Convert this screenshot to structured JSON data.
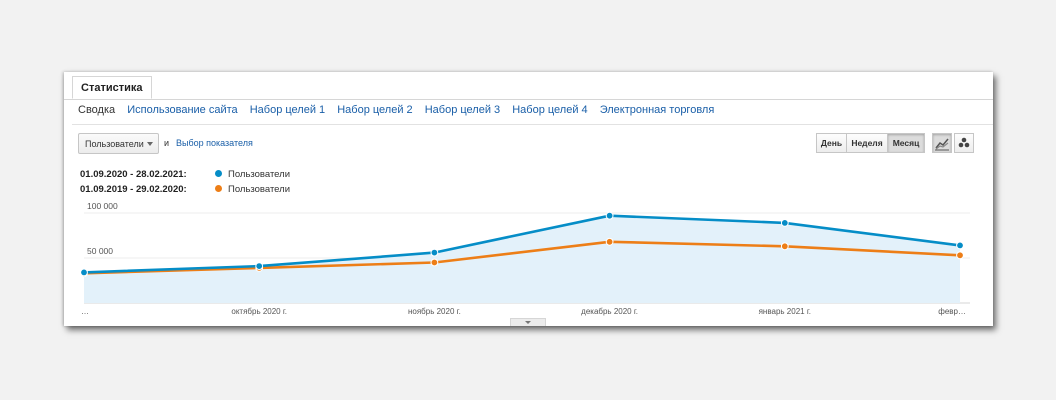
{
  "tab": {
    "label": "Статистика"
  },
  "subnav": [
    "Сводка",
    "Использование сайта",
    "Набор целей 1",
    "Набор целей 2",
    "Набор целей 3",
    "Набор целей 4",
    "Электронная торговля"
  ],
  "controls": {
    "metric": "Пользователи",
    "and_label": "и",
    "pick_metric": "Выбор показателя",
    "periods": [
      "День",
      "Неделя",
      "Месяц"
    ],
    "active_period": "Месяц",
    "views": [
      "line-chart-icon",
      "motion-chart-icon"
    ]
  },
  "legend": [
    {
      "range": "01.09.2020 - 28.02.2021:",
      "name": "Пользователи",
      "color": "#058dc7"
    },
    {
      "range": "01.09.2019 - 29.02.2020:",
      "name": "Пользователи",
      "color": "#ed7e17"
    }
  ],
  "chart_data": {
    "type": "line",
    "x": [
      "…",
      "октябрь 2020 г.",
      "ноябрь 2020 г.",
      "декабрь 2020 г.",
      "январь 2021 г.",
      "февр…"
    ],
    "y_ticks": [
      "100 000",
      "50 000"
    ],
    "y_tick_values": [
      100000,
      50000
    ],
    "ylim": [
      0,
      110000
    ],
    "series": [
      {
        "name": "Пользователи",
        "period": "01.09.2020 - 28.02.2021",
        "color": "#058dc7",
        "values": [
          34000,
          41000,
          56000,
          97000,
          89000,
          64000
        ],
        "area_fill": "#e3f1fa"
      },
      {
        "name": "Пользователи",
        "period": "01.09.2019 - 29.02.2020",
        "color": "#ed7e17",
        "values": [
          33000,
          39000,
          45000,
          68000,
          63000,
          53000
        ]
      }
    ],
    "grid": true
  }
}
